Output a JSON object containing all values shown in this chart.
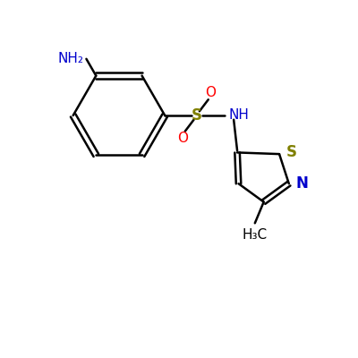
{
  "background_color": "#ffffff",
  "bond_color": "#000000",
  "nh2_color": "#0000cc",
  "oxygen_color": "#ff0000",
  "sulfur_color": "#808000",
  "n_hetero_color": "#0000cc",
  "s_hetero_color": "#808000",
  "label_NH2": "NH₂",
  "label_S": "S",
  "label_O_top": "O",
  "label_O_bottom": "O",
  "label_NH": "NH",
  "label_S_ring": "S",
  "label_N_ring": "N",
  "label_CH3": "H₃C",
  "figsize": [
    4.0,
    4.0
  ],
  "dpi": 100,
  "xlim": [
    0,
    10
  ],
  "ylim": [
    0,
    10
  ]
}
